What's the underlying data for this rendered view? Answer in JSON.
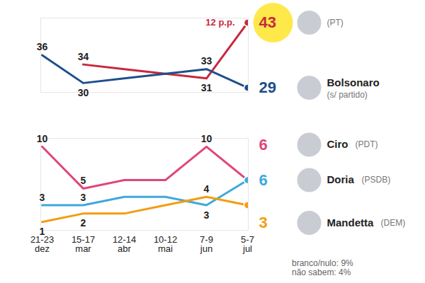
{
  "chart_data": [
    {
      "type": "line",
      "annotations": [
        "12 p.p."
      ],
      "categories": [
        "21-23 dez",
        "15-17 mar",
        "12-14 abr",
        "10-12 mai",
        "7-9 jun",
        "5-7 jul"
      ],
      "series": [
        {
          "name": null,
          "party": "(PT)",
          "color": "#c8283c",
          "values": [
            null,
            34,
            33,
            32,
            31,
            43
          ],
          "value_labels": [
            null,
            "34",
            null,
            null,
            "31",
            "43"
          ]
        },
        {
          "name": "Bolsonaro",
          "party": "(s/ partido)",
          "color": "#1d4f8c",
          "values": [
            36,
            30,
            31,
            32,
            33,
            29
          ],
          "value_labels": [
            "36",
            "30",
            null,
            null,
            "33",
            "29"
          ]
        }
      ],
      "ylim": [
        28,
        44
      ],
      "yticks": [],
      "data_labels": true,
      "tick_labels": false
    },
    {
      "type": "line",
      "categories": [
        "21-23 dez",
        "15-17 mar",
        "12-14 abr",
        "10-12 mai",
        "7-9 jun",
        "5-7 jul"
      ],
      "series": [
        {
          "name": "Ciro",
          "party": "(PDT)",
          "color": "#e0457b",
          "values": [
            10,
            5,
            6,
            6,
            10,
            6
          ],
          "value_labels": [
            "10",
            "5",
            null,
            null,
            "10",
            "6"
          ]
        },
        {
          "name": "Doria",
          "party": "(PSDB)",
          "color": "#3fa9dc",
          "values": [
            3,
            3,
            4,
            4,
            3,
            6
          ],
          "value_labels": [
            "3",
            "3",
            null,
            null,
            "3",
            "6"
          ]
        },
        {
          "name": "Mandetta",
          "party": "(DEM)",
          "color": "#f39c12",
          "values": [
            1,
            2,
            2,
            3,
            4,
            3
          ],
          "value_labels": [
            "1",
            "2",
            null,
            null,
            "4",
            "3"
          ]
        }
      ],
      "ylim": [
        0,
        11
      ],
      "yticks": [],
      "data_labels": true,
      "tick_labels": "x",
      "notes": [
        "branco/nulo: 9%",
        "não sabem: 4%"
      ]
    }
  ]
}
